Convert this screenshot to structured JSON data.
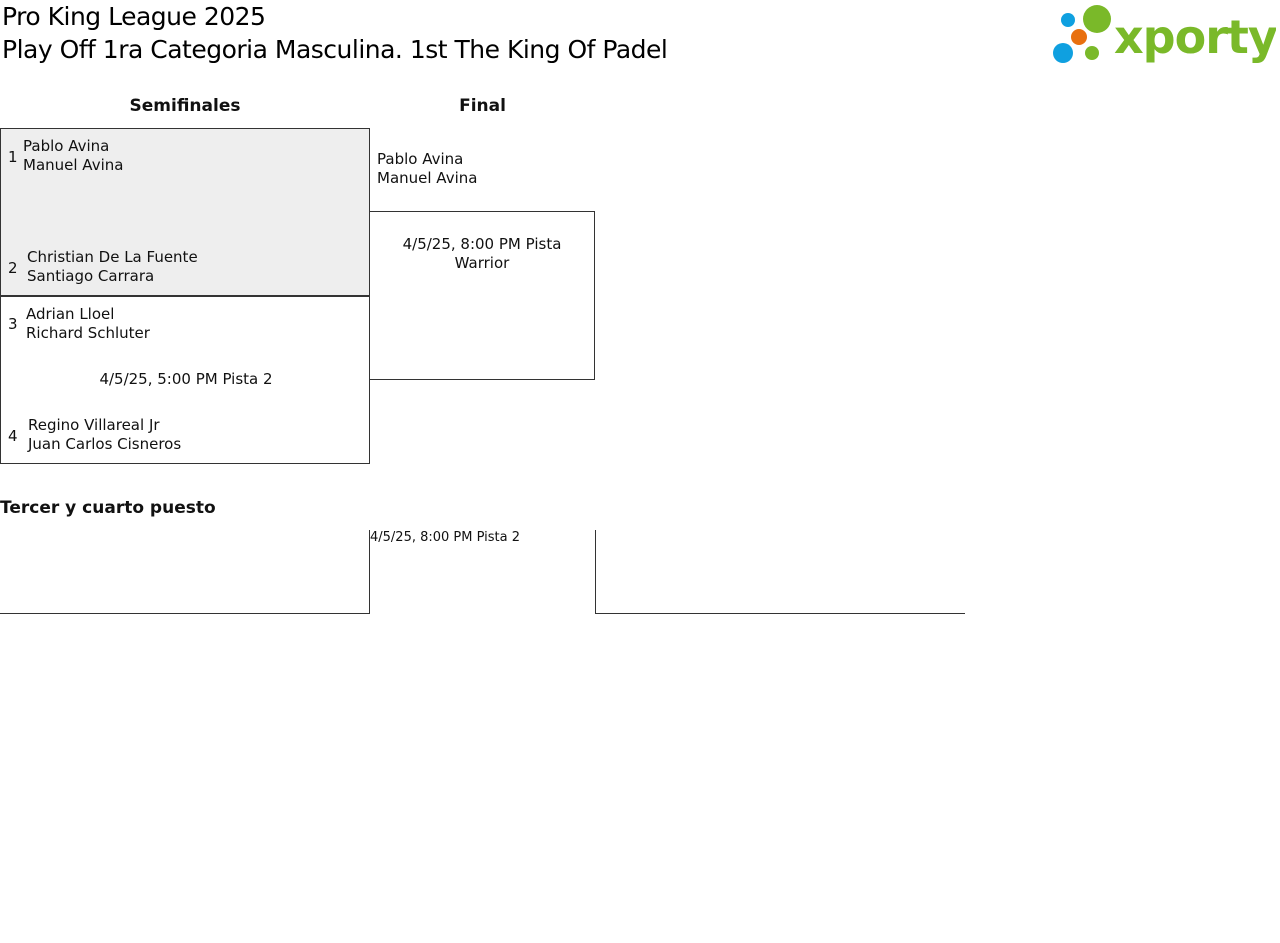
{
  "header": {
    "title": "Pro King League 2025",
    "subtitle": "Play Off 1ra Categoria Masculina. 1st The King Of Padel",
    "logo_text": "xporty"
  },
  "rounds": {
    "semis": "Semifinales",
    "final": "Final"
  },
  "semis": [
    {
      "teams": [
        {
          "seed": "1",
          "p1": "Pablo Avina",
          "p2": "Manuel Avina"
        },
        {
          "seed": "2",
          "p1": "Christian De La Fuente",
          "p2": "Santiago Carrara"
        }
      ]
    },
    {
      "teams": [
        {
          "seed": "3",
          "p1": "Adrian Lloel",
          "p2": "Richard Schluter"
        },
        {
          "seed": "4",
          "p1": "Regino Villareal Jr",
          "p2": "Juan Carlos Cisneros"
        }
      ],
      "date": "4/5/25, 5:00 PM Pista 2"
    }
  ],
  "final": {
    "p1": "Pablo Avina",
    "p2": "Manuel Avina",
    "date": "4/5/25, 8:00 PM Pista Warrior"
  },
  "third": {
    "title": "Tercer y cuarto puesto",
    "date": "4/5/25, 8:00 PM Pista 2"
  },
  "colors": {
    "winner_bg": "#eeeeee",
    "logo_green": "#7ab929",
    "logo_blue": "#0fa0e0",
    "logo_orange": "#e8700f"
  }
}
